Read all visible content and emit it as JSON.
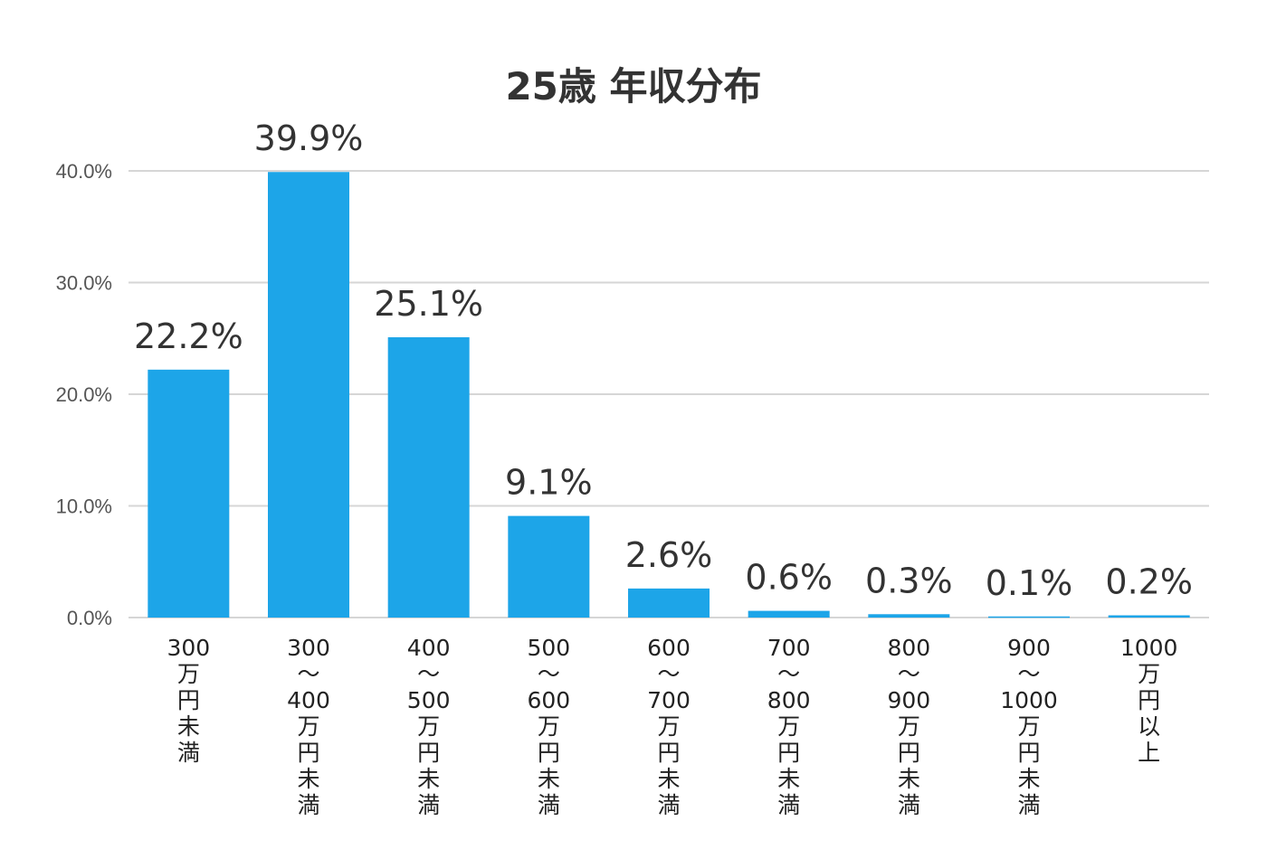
{
  "chart_data": {
    "type": "bar",
    "title": "25歳 年収分布",
    "xlabel": "",
    "ylabel": "",
    "ylim": [
      0,
      40
    ],
    "yticks": [
      "0.0%",
      "10.0%",
      "20.0%",
      "30.0%",
      "40.0%"
    ],
    "ytick_values": [
      0,
      10,
      20,
      30,
      40
    ],
    "grid": true,
    "bar_color": "#1da5e8",
    "categories": [
      "300万円未満",
      "300〜400万円未満",
      "400〜500万円未満",
      "500〜600万円未満",
      "600〜700万円未満",
      "700〜800万円未満",
      "800〜900万円未満",
      "900〜1000万円未満",
      "1000万円以上"
    ],
    "category_label_lines": [
      [
        "300",
        "万",
        "円",
        "未",
        "満"
      ],
      [
        "300",
        "〜",
        "400",
        "万",
        "円",
        "未",
        "満"
      ],
      [
        "400",
        "〜",
        "500",
        "万",
        "円",
        "未",
        "満"
      ],
      [
        "500",
        "〜",
        "600",
        "万",
        "円",
        "未",
        "満"
      ],
      [
        "600",
        "〜",
        "700",
        "万",
        "円",
        "未",
        "満"
      ],
      [
        "700",
        "〜",
        "800",
        "万",
        "円",
        "未",
        "満"
      ],
      [
        "800",
        "〜",
        "900",
        "万",
        "円",
        "未",
        "満"
      ],
      [
        "900",
        "〜",
        "1000",
        "万",
        "円",
        "未",
        "満"
      ],
      [
        "1000",
        "万",
        "円",
        "以",
        "上"
      ]
    ],
    "values": [
      22.2,
      39.9,
      25.1,
      9.1,
      2.6,
      0.6,
      0.3,
      0.1,
      0.2
    ],
    "value_labels": [
      "22.2%",
      "39.9%",
      "25.1%",
      "9.1%",
      "2.6%",
      "0.6%",
      "0.3%",
      "0.1%",
      "0.2%"
    ]
  }
}
